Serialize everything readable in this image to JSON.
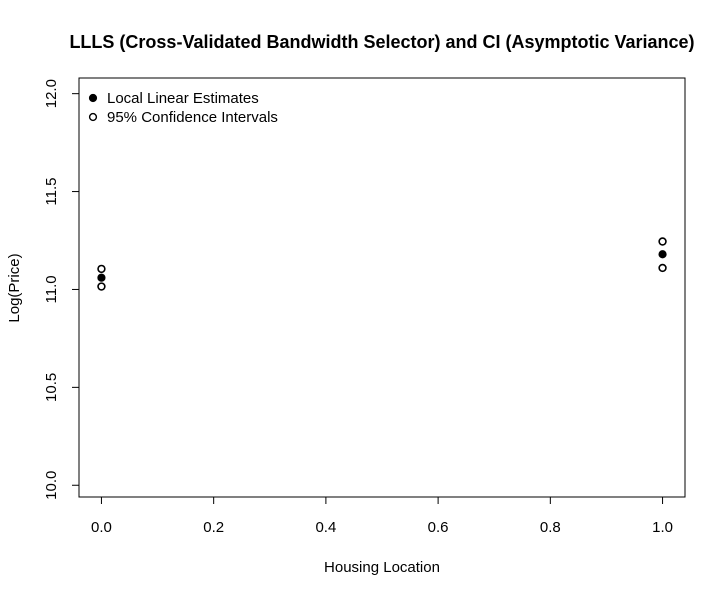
{
  "chart_data": {
    "type": "scatter",
    "title": "LLLS (Cross-Validated Bandwidth Selector) and CI (Asymptotic Variance)",
    "xlabel": "Housing Location",
    "ylabel": "Log(Price)",
    "xlim": [
      -0.04,
      1.04
    ],
    "ylim": [
      9.94,
      12.08
    ],
    "xticks": [
      0.0,
      0.2,
      0.4,
      0.6,
      0.8,
      1.0
    ],
    "xtick_labels": [
      "0.0",
      "0.2",
      "0.4",
      "0.6",
      "0.8",
      "1.0"
    ],
    "yticks": [
      10.0,
      10.5,
      11.0,
      11.5,
      12.0
    ],
    "ytick_labels": [
      "10.0",
      "10.5",
      "11.0",
      "11.5",
      "12.0"
    ],
    "legend_position": "top-left",
    "grid": false,
    "series": [
      {
        "name": "Local Linear Estimates",
        "marker": "filled-circle",
        "points": [
          {
            "x": 0.0,
            "y": 11.06
          },
          {
            "x": 1.0,
            "y": 11.18
          }
        ]
      },
      {
        "name": "95% Confidence Intervals",
        "marker": "open-circle",
        "points": [
          {
            "x": 0.0,
            "y": 11.105
          },
          {
            "x": 0.0,
            "y": 11.015
          },
          {
            "x": 1.0,
            "y": 11.245
          },
          {
            "x": 1.0,
            "y": 11.11
          }
        ]
      }
    ]
  }
}
